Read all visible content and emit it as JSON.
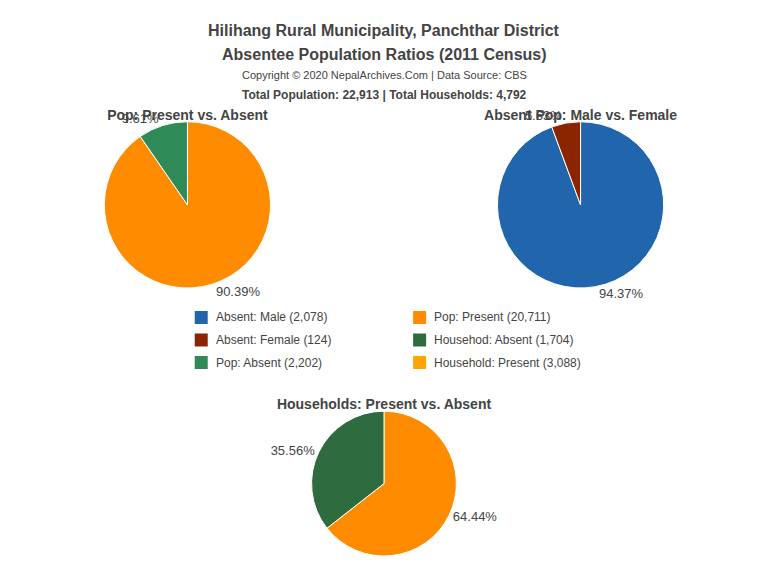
{
  "title": "Hilihang Rural Municipality, Panchthar District",
  "subtitle": "Absentee Population Ratios (2011 Census)",
  "annotations": [
    "Copyright © 2020 NepalArchives.Com | Data Source: CBS",
    "Total Population: 22,913 | Total Households: 4,792"
  ],
  "legend_entries": [
    {
      "label": "Absent: Male (2,078)",
      "color": "#2166AC"
    },
    {
      "label": "Absent: Female (124)",
      "color": "#8B2500"
    },
    {
      "label": "Pop: Absent (2,202)",
      "color": "#2E8B57"
    },
    {
      "label": "Pop: Present (20,711)",
      "color": "#FF8C00"
    },
    {
      "label": "Househod: Absent (1,704)",
      "color": "#2E6B3E"
    },
    {
      "label": "Household: Present (3,088)",
      "color": "#FFA500"
    }
  ],
  "chart_data": [
    {
      "type": "pie",
      "title": "Pop: Present vs. Absent",
      "values": [
        90.39,
        9.61
      ],
      "value_labels": [
        "90.39%",
        "9.61%"
      ],
      "colors": [
        "#FF8C00",
        "#2E8B57"
      ],
      "data_labels": true
    },
    {
      "type": "pie",
      "title": "Absent Pop: Male vs. Female",
      "values": [
        94.37,
        5.63
      ],
      "value_labels": [
        "94.37%",
        "5.63%"
      ],
      "colors": [
        "#2166AC",
        "#8B2500"
      ],
      "data_labels": true
    },
    {
      "type": "pie",
      "title": "Households: Present vs. Absent",
      "values": [
        64.44,
        35.56
      ],
      "value_labels": [
        "64.44%",
        "35.56%"
      ],
      "colors": [
        "#FF8C00",
        "#2E6B3E"
      ],
      "data_labels": true
    }
  ]
}
